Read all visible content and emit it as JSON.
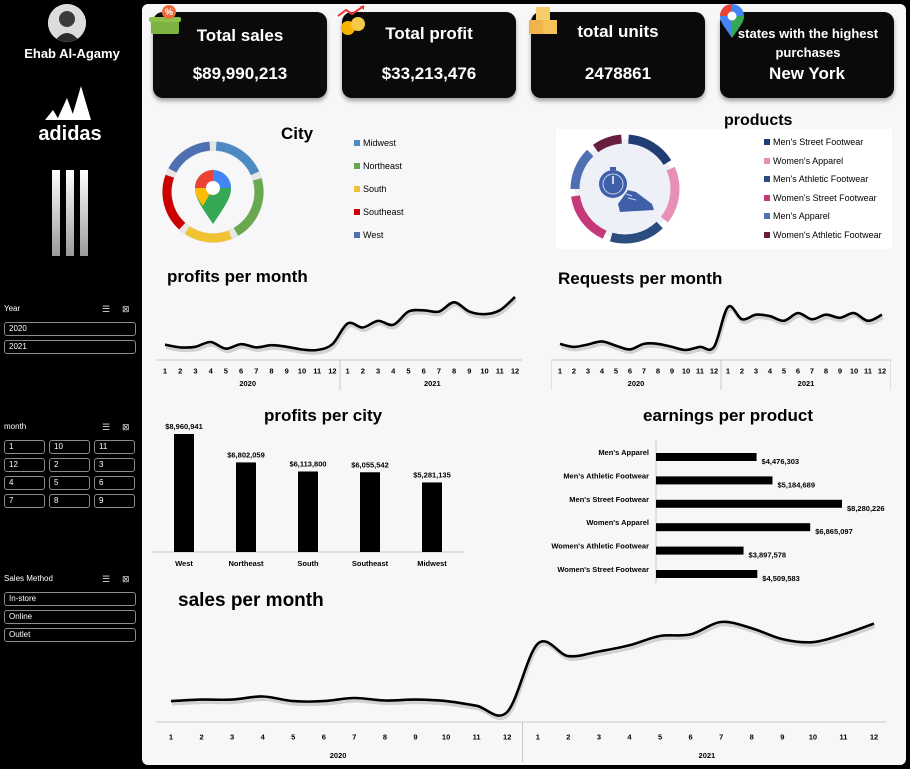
{
  "user": {
    "name": "Ehab Al-Agamy"
  },
  "brand": {
    "name": "adidas"
  },
  "slicers": {
    "year": {
      "label": "Year",
      "items": [
        "2020",
        "2021"
      ]
    },
    "month": {
      "label": "month",
      "items": [
        "1",
        "10",
        "11",
        "12",
        "2",
        "3",
        "4",
        "5",
        "6",
        "7",
        "8",
        "9"
      ]
    },
    "method": {
      "label": "Sales Method",
      "items": [
        "In-store",
        "Online",
        "Outlet"
      ]
    }
  },
  "kpis": {
    "sales": {
      "label": "Total sales",
      "value": "$89,990,213",
      "icon": "basket-percent-icon"
    },
    "profit": {
      "label": "Total profit",
      "value": "$33,213,476",
      "icon": "coins-growth-icon"
    },
    "units": {
      "label": "total units",
      "value": "2478861",
      "icon": "boxes-icon"
    },
    "state": {
      "label": "states with the highest purchases",
      "value": "New York",
      "icon": "map-pin-icon"
    }
  },
  "city_panel": {
    "title": "City",
    "legend": [
      {
        "name": "Midwest",
        "color": "#4d8ac4"
      },
      {
        "name": "Northeast",
        "color": "#6aa84f"
      },
      {
        "name": "South",
        "color": "#f1c232"
      },
      {
        "name": "Southeast",
        "color": "#cc0000"
      },
      {
        "name": "West",
        "color": "#4f6fb3"
      }
    ]
  },
  "products_panel": {
    "title": "products",
    "legend": [
      {
        "name": "Men's Street Footwear",
        "color": "#1f3c73"
      },
      {
        "name": "Women's Apparel",
        "color": "#e88fb4"
      },
      {
        "name": "Men's Athletic Footwear",
        "color": "#2a4d7f"
      },
      {
        "name": "Women's Street Footwear",
        "color": "#c6387a"
      },
      {
        "name": "Men's Apparel",
        "color": "#4f6fb3"
      },
      {
        "name": "Women's Athletic Footwear",
        "color": "#6b1d3f"
      }
    ]
  },
  "chart_data": [
    {
      "type": "line",
      "title": "profits per month",
      "x": [
        "1",
        "2",
        "3",
        "4",
        "5",
        "6",
        "7",
        "8",
        "9",
        "10",
        "11",
        "12",
        "1",
        "2",
        "3",
        "4",
        "5",
        "6",
        "7",
        "8",
        "9",
        "10",
        "11",
        "12"
      ],
      "groups": [
        "2020",
        "2021"
      ],
      "series": [
        {
          "values": [
            0.3,
            0.2,
            0.22,
            0.4,
            0.15,
            0.32,
            0.2,
            0.28,
            0.22,
            0.12,
            0.1,
            0.32,
            1.1,
            0.95,
            1.2,
            1.05,
            1.55,
            1.6,
            1.55,
            1.9,
            1.55,
            1.45,
            1.6,
            2.1
          ]
        }
      ]
    },
    {
      "type": "line",
      "title": "Requests per month",
      "x": [
        "1",
        "2",
        "3",
        "4",
        "5",
        "6",
        "7",
        "8",
        "9",
        "10",
        "11",
        "12",
        "1",
        "2",
        "3",
        "4",
        "5",
        "6",
        "7",
        "8",
        "9",
        "10",
        "11",
        "12"
      ],
      "groups": [
        "2020",
        "2021"
      ],
      "series": [
        {
          "values": [
            0.3,
            0.2,
            0.28,
            0.38,
            0.24,
            0.12,
            0.3,
            0.3,
            0.2,
            0.1,
            0.2,
            0.2,
            1.5,
            1.1,
            1.25,
            1.2,
            1.05,
            1.3,
            1.1,
            1.25,
            1.15,
            1.3,
            1.05,
            1.25
          ]
        }
      ]
    },
    {
      "type": "bar",
      "title": "profits per city",
      "categories": [
        "West",
        "Northeast",
        "South",
        "Southeast",
        "Midwest"
      ],
      "values": [
        8960941,
        6802059,
        6113800,
        6055542,
        5281135
      ],
      "labels": [
        "$8,960,941",
        "$6,802,059",
        "$6,113,800",
        "$6,055,542",
        "$5,281,135"
      ]
    },
    {
      "type": "bar",
      "orientation": "horizontal",
      "title": "earnings per product",
      "categories": [
        "Men's Apparel",
        "Men's Athletic Footwear",
        "Men's Street Footwear",
        "Women's Apparel",
        "Women's Athletic Footwear",
        "Women's Street Footwear"
      ],
      "values": [
        4476303,
        5184689,
        8280226,
        6865097,
        3897578,
        4509583
      ],
      "labels": [
        "$4,476,303",
        "$5,184,689",
        "$8,280,226",
        "$6,865,097",
        "$3,897,578",
        "$4,509,583"
      ]
    },
    {
      "type": "line",
      "title": "sales per month",
      "x": [
        "1",
        "2",
        "3",
        "4",
        "5",
        "6",
        "7",
        "8",
        "9",
        "10",
        "11",
        "12",
        "1",
        "2",
        "3",
        "4",
        "5",
        "6",
        "7",
        "8",
        "9",
        "10",
        "11",
        "12"
      ],
      "groups": [
        "2020",
        "2021"
      ],
      "series": [
        {
          "values": [
            0.5,
            0.55,
            0.55,
            0.65,
            0.5,
            0.5,
            0.6,
            0.52,
            0.55,
            0.5,
            0.35,
            0.15,
            2.35,
            1.95,
            2.1,
            2.3,
            2.6,
            2.65,
            3.05,
            2.85,
            2.5,
            2.4,
            2.65,
            3.0
          ]
        }
      ]
    }
  ]
}
